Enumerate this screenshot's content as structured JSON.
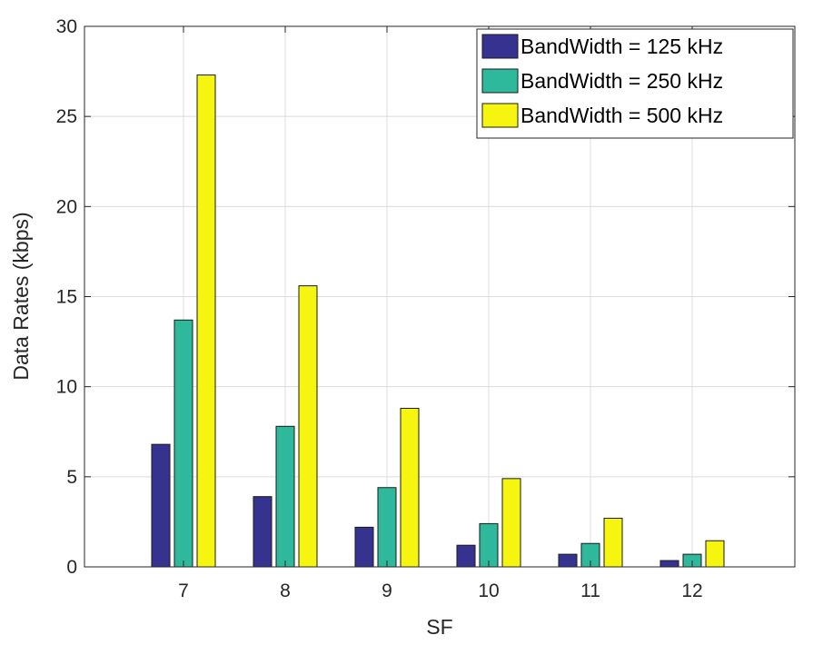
{
  "chart_data": {
    "type": "bar",
    "title": "",
    "xlabel": "SF",
    "ylabel": "Data Rates (kbps)",
    "categories": [
      "7",
      "8",
      "9",
      "10",
      "11",
      "12"
    ],
    "ylim": [
      0,
      30
    ],
    "yticks": [
      "0",
      "5",
      "10",
      "15",
      "20",
      "25",
      "30"
    ],
    "grid": true,
    "legend_position": "top-right",
    "series": [
      {
        "name": "BandWidth = 125 kHz",
        "color": "#35338f",
        "values": [
          6.8,
          3.9,
          2.2,
          1.2,
          0.7,
          0.35
        ]
      },
      {
        "name": "BandWidth = 250 kHz",
        "color": "#2eb99c",
        "values": [
          13.7,
          7.8,
          4.4,
          2.4,
          1.3,
          0.7
        ]
      },
      {
        "name": "BandWidth = 500 kHz",
        "color": "#f5f50f",
        "values": [
          27.3,
          15.6,
          8.8,
          4.9,
          2.7,
          1.45
        ]
      }
    ]
  }
}
